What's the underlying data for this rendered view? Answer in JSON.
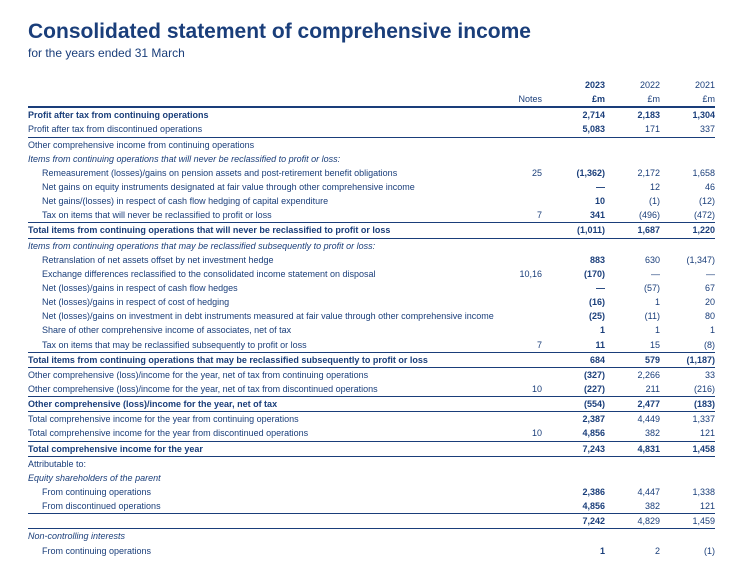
{
  "colors": {
    "primary": "#1a3e7a",
    "text": "#333333",
    "background": "#ffffff"
  },
  "title": "Consolidated statement of comprehensive income",
  "subtitle": "for the years ended 31 March",
  "headers": {
    "notes": "Notes",
    "y2023": "2023",
    "y2022": "2022",
    "y2021": "2021",
    "unit": "£m"
  },
  "rows": [
    {
      "id": "r1",
      "label": "Profit after tax from continuing operations",
      "notes": "",
      "v": [
        "2,714",
        "2,183",
        "1,304"
      ],
      "cls": "bold-row cur top-thick"
    },
    {
      "id": "r2",
      "label": "Profit after tax from discontinued operations",
      "notes": "",
      "v": [
        "5,083",
        "171",
        "337"
      ],
      "cls": "cur b-bot"
    },
    {
      "id": "r3",
      "label": "Other comprehensive income from continuing operations",
      "notes": "",
      "v": [
        "",
        "",
        ""
      ],
      "cls": ""
    },
    {
      "id": "r4",
      "label": "Items from continuing operations that will never be reclassified to profit or loss:",
      "notes": "",
      "v": [
        "",
        "",
        ""
      ],
      "cls": "italic-row"
    },
    {
      "id": "r5",
      "label": "Remeasurement (losses)/gains on pension assets and post-retirement benefit obligations",
      "notes": "25",
      "v": [
        "(1,362)",
        "2,172",
        "1,658"
      ],
      "cls": "indent cur"
    },
    {
      "id": "r6",
      "label": "Net gains on equity instruments designated at fair value through other comprehensive income",
      "notes": "",
      "v": [
        "—",
        "12",
        "46"
      ],
      "cls": "indent cur"
    },
    {
      "id": "r7",
      "label": "Net gains/(losses) in respect of cash flow hedging of capital expenditure",
      "notes": "",
      "v": [
        "10",
        "(1)",
        "(12)"
      ],
      "cls": "indent cur"
    },
    {
      "id": "r8",
      "label": "Tax on items that will never be reclassified to profit or loss",
      "notes": "7",
      "v": [
        "341",
        "(496)",
        "(472)"
      ],
      "cls": "indent cur b-bot"
    },
    {
      "id": "r9",
      "label": "Total items from continuing operations that will never be reclassified to profit or loss",
      "notes": "",
      "v": [
        "(1,011)",
        "1,687",
        "1,220"
      ],
      "cls": "bold-row cur b-bot"
    },
    {
      "id": "r10",
      "label": "Items from continuing operations that may be reclassified subsequently to profit or loss:",
      "notes": "",
      "v": [
        "",
        "",
        ""
      ],
      "cls": "italic-row"
    },
    {
      "id": "r11",
      "label": "Retranslation of net assets offset by net investment hedge",
      "notes": "",
      "v": [
        "883",
        "630",
        "(1,347)"
      ],
      "cls": "indent cur"
    },
    {
      "id": "r12",
      "label": "Exchange differences reclassified to the consolidated income statement on disposal",
      "notes": "10,16",
      "v": [
        "(170)",
        "—",
        "—"
      ],
      "cls": "indent cur"
    },
    {
      "id": "r13",
      "label": "Net (losses)/gains in respect of cash flow hedges",
      "notes": "",
      "v": [
        "—",
        "(57)",
        "67"
      ],
      "cls": "indent cur"
    },
    {
      "id": "r14",
      "label": "Net (losses)/gains in respect of cost of hedging",
      "notes": "",
      "v": [
        "(16)",
        "1",
        "20"
      ],
      "cls": "indent cur"
    },
    {
      "id": "r15",
      "label": "Net (losses)/gains on investment in debt instruments measured at fair value through other comprehensive income",
      "notes": "",
      "v": [
        "(25)",
        "(11)",
        "80"
      ],
      "cls": "indent cur"
    },
    {
      "id": "r16",
      "label": "Share of other comprehensive income of associates, net of tax",
      "notes": "",
      "v": [
        "1",
        "1",
        "1"
      ],
      "cls": "indent cur"
    },
    {
      "id": "r17",
      "label": "Tax on items that may be reclassified subsequently to profit or loss",
      "notes": "7",
      "v": [
        "11",
        "15",
        "(8)"
      ],
      "cls": "indent cur b-bot"
    },
    {
      "id": "r18",
      "label": "Total items from continuing operations that may be reclassified subsequently to profit or loss",
      "notes": "",
      "v": [
        "684",
        "579",
        "(1,187)"
      ],
      "cls": "bold-row cur b-bot"
    },
    {
      "id": "r19",
      "label": "Other comprehensive (loss)/income for the year, net of tax from continuing operations",
      "notes": "",
      "v": [
        "(327)",
        "2,266",
        "33"
      ],
      "cls": "cur"
    },
    {
      "id": "r20",
      "label": "Other comprehensive (loss)/income for the year, net of tax from discontinued operations",
      "notes": "10",
      "v": [
        "(227)",
        "211",
        "(216)"
      ],
      "cls": "cur b-bot"
    },
    {
      "id": "r21",
      "label": "Other comprehensive (loss)/income for the year, net of tax",
      "notes": "",
      "v": [
        "(554)",
        "2,477",
        "(183)"
      ],
      "cls": "bold-row cur b-bot"
    },
    {
      "id": "r22",
      "label": "Total comprehensive income for the year from continuing operations",
      "notes": "",
      "v": [
        "2,387",
        "4,449",
        "1,337"
      ],
      "cls": "cur"
    },
    {
      "id": "r23",
      "label": "Total comprehensive income for the year from discontinued operations",
      "notes": "10",
      "v": [
        "4,856",
        "382",
        "121"
      ],
      "cls": "cur b-bot"
    },
    {
      "id": "r24",
      "label": "Total comprehensive income for the year",
      "notes": "",
      "v": [
        "7,243",
        "4,831",
        "1,458"
      ],
      "cls": "bold-row cur b-bot"
    },
    {
      "id": "r25",
      "label": "Attributable to:",
      "notes": "",
      "v": [
        "",
        "",
        ""
      ],
      "cls": ""
    },
    {
      "id": "r26",
      "label": "Equity shareholders of the parent",
      "notes": "",
      "v": [
        "",
        "",
        ""
      ],
      "cls": "italic-row"
    },
    {
      "id": "r27",
      "label": "From continuing operations",
      "notes": "",
      "v": [
        "2,386",
        "4,447",
        "1,338"
      ],
      "cls": "indent cur"
    },
    {
      "id": "r28",
      "label": "From discontinued operations",
      "notes": "",
      "v": [
        "4,856",
        "382",
        "121"
      ],
      "cls": "indent cur b-bot"
    },
    {
      "id": "r29",
      "label": "",
      "notes": "",
      "v": [
        "7,242",
        "4,829",
        "1,459"
      ],
      "cls": "cur b-bot"
    },
    {
      "id": "r30",
      "label": "Non-controlling interests",
      "notes": "",
      "v": [
        "",
        "",
        ""
      ],
      "cls": "italic-row"
    },
    {
      "id": "r31",
      "label": "From continuing operations",
      "notes": "",
      "v": [
        "1",
        "2",
        "(1)"
      ],
      "cls": "indent cur"
    }
  ]
}
